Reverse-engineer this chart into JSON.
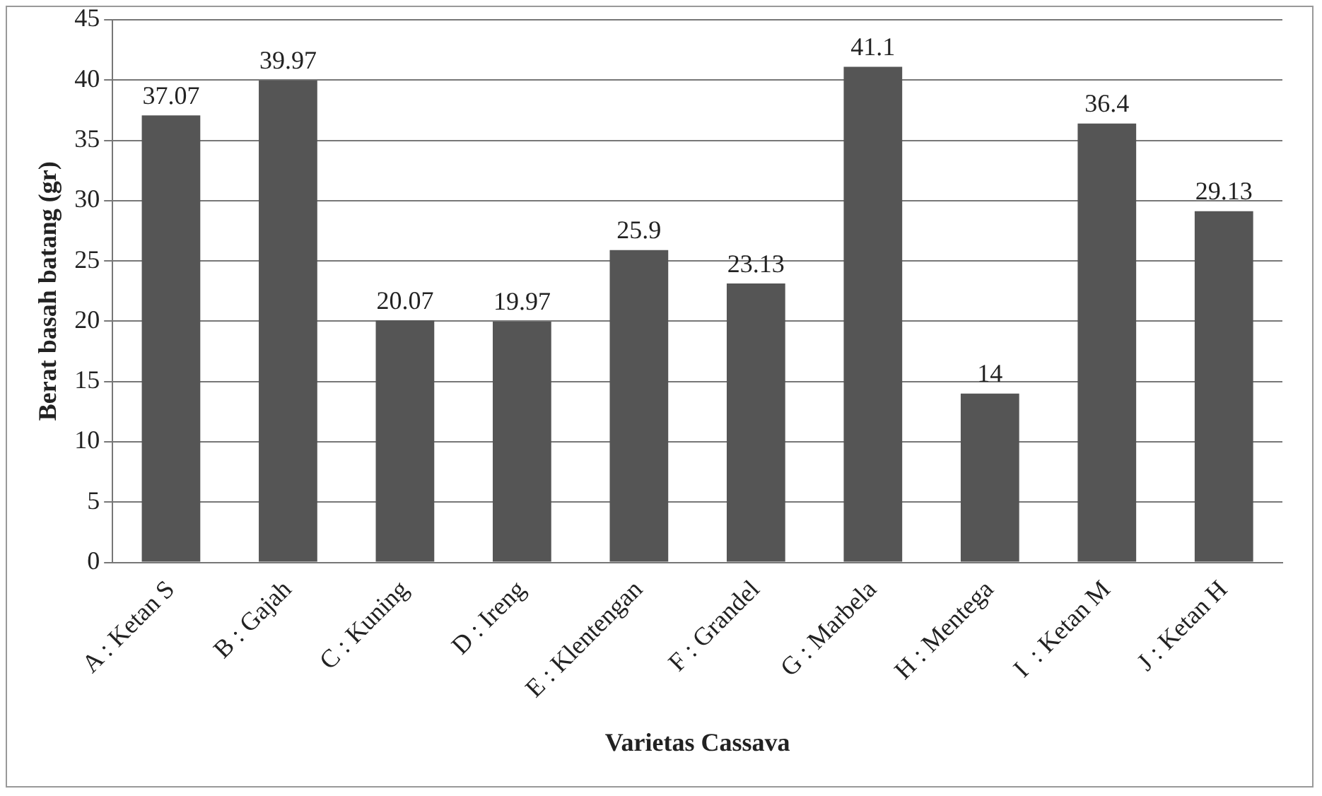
{
  "chart_data": {
    "type": "bar",
    "xlabel": "Varietas Cassava",
    "ylabel": "Berat basah batang (gr)",
    "categories": [
      "A : Ketan S",
      "B : Gajah",
      "C : Kuning",
      "D : Ireng",
      "E : Klentengan",
      "F : Grandel",
      "G : Marbela",
      "H : Mentega",
      "I  : Ketan M",
      "J : Ketan H"
    ],
    "values": [
      37.07,
      39.97,
      20.07,
      19.97,
      25.9,
      23.13,
      41.1,
      14,
      36.4,
      29.13
    ],
    "color": "#555555",
    "ylim": [
      0,
      45
    ],
    "yticks": [
      0,
      5,
      10,
      15,
      20,
      25,
      30,
      35,
      40,
      45
    ],
    "grid": "y",
    "data_labels": true
  }
}
